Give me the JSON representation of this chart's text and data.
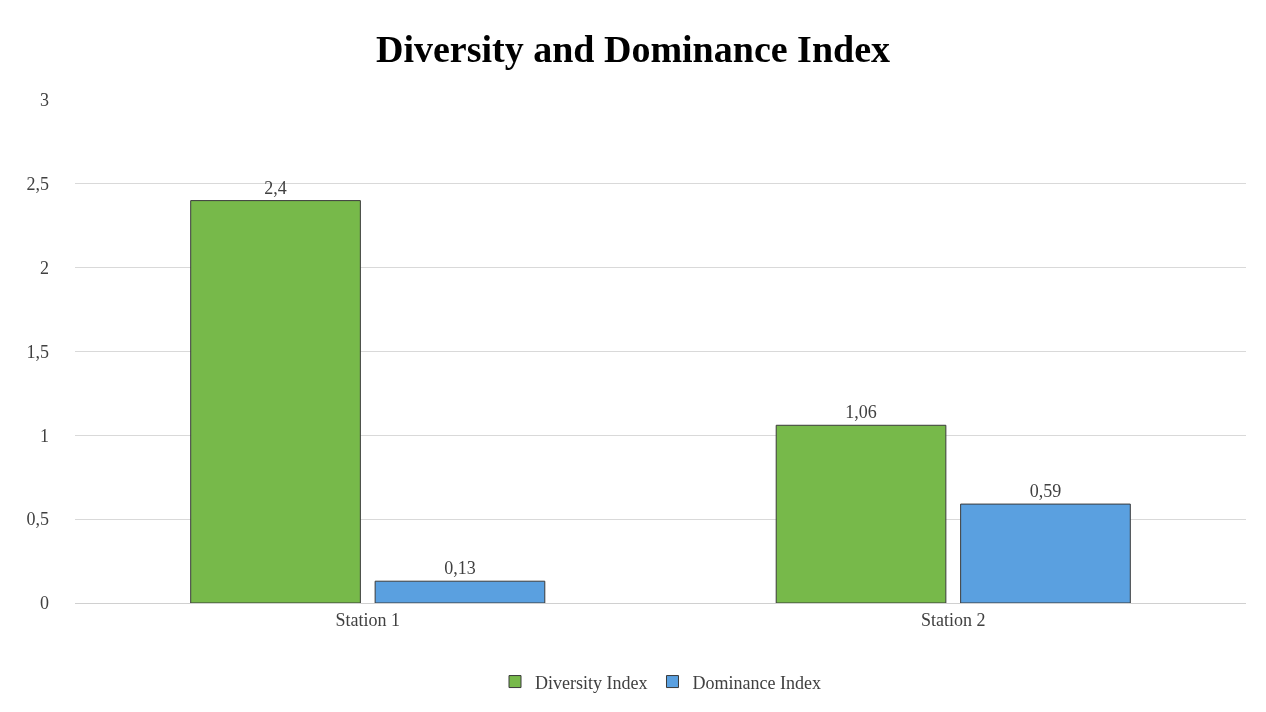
{
  "chart_data": {
    "type": "bar",
    "title": "Diversity and Dominance Index",
    "categories": [
      "Station 1",
      "Station 2"
    ],
    "series": [
      {
        "name": "Diversity Index",
        "color": "#77b94a",
        "values": [
          2.4,
          1.06
        ],
        "value_labels": [
          "2,4",
          "1,06"
        ]
      },
      {
        "name": "Dominance Index",
        "color": "#5aa0e0",
        "values": [
          0.13,
          0.59
        ],
        "value_labels": [
          "0,13",
          "0,59"
        ]
      }
    ],
    "ylim": [
      0,
      3
    ],
    "yticks": [
      0,
      {
        "value": 0.5,
        "label": "0,5"
      },
      1,
      {
        "value": 1.5,
        "label": "1,5"
      },
      2,
      {
        "value": 2.5,
        "label": "2,5"
      },
      3
    ],
    "grid": "y",
    "legend": "bottom"
  }
}
